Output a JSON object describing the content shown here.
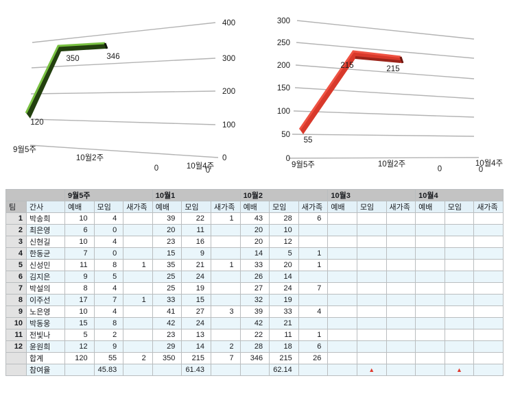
{
  "chart_data": [
    {
      "type": "line",
      "style": "3d-perspective",
      "title": "",
      "xlabel": "",
      "ylabel": "",
      "series_name": "예배",
      "series_color": "#6dbf3e",
      "categories": [
        "9월5주",
        "10월1",
        "10월2",
        "10월3",
        "10월4"
      ],
      "x_tick_labels": [
        "9월5주",
        "10월2주",
        "10월4주"
      ],
      "values": [
        120,
        350,
        346,
        0,
        0
      ],
      "yticks": [
        0,
        100,
        200,
        300,
        400
      ],
      "ylim": [
        0,
        400
      ],
      "grid": true,
      "legend_position": "none",
      "y_axis_side": "right"
    },
    {
      "type": "line",
      "style": "3d-perspective",
      "title": "",
      "xlabel": "",
      "ylabel": "",
      "series_name": "모임",
      "series_color": "#dd3b2d",
      "categories": [
        "9월5주",
        "10월1",
        "10월2",
        "10월3",
        "10월4"
      ],
      "x_tick_labels": [
        "9월5주",
        "10월2주",
        "10월4주"
      ],
      "values": [
        55,
        215,
        215,
        0,
        0
      ],
      "yticks": [
        0,
        50,
        100,
        150,
        200,
        250,
        300
      ],
      "ylim": [
        0,
        300
      ],
      "grid": true,
      "legend_position": "none",
      "y_axis_side": "left"
    }
  ],
  "table": {
    "group_headers": [
      "",
      "9월5주",
      "10월1",
      "10월2",
      "10월3",
      "10월4"
    ],
    "col_headers": [
      "팀",
      "간사",
      "예배",
      "모임",
      "새가족",
      "예배",
      "모임",
      "새가족",
      "예배",
      "모임",
      "새가족",
      "예배",
      "모임",
      "새가족",
      "예배",
      "모임",
      "새가족"
    ],
    "rows": [
      {
        "num": "1",
        "name": "박송희",
        "values": [
          "10",
          "4",
          "",
          "39",
          "22",
          "1",
          "43",
          "28",
          "6",
          "",
          "",
          "",
          "",
          "",
          ""
        ]
      },
      {
        "num": "2",
        "name": "최은영",
        "values": [
          "6",
          "0",
          "",
          "20",
          "11",
          "",
          "20",
          "10",
          "",
          "",
          "",
          "",
          "",
          "",
          ""
        ]
      },
      {
        "num": "3",
        "name": "신현길",
        "values": [
          "10",
          "4",
          "",
          "23",
          "16",
          "",
          "20",
          "12",
          "",
          "",
          "",
          "",
          "",
          "",
          ""
        ]
      },
      {
        "num": "4",
        "name": "한동균",
        "values": [
          "7",
          "0",
          "",
          "15",
          "9",
          "",
          "14",
          "5",
          "1",
          "",
          "",
          "",
          "",
          "",
          ""
        ]
      },
      {
        "num": "5",
        "name": "신성민",
        "values": [
          "11",
          "8",
          "1",
          "35",
          "21",
          "1",
          "33",
          "20",
          "1",
          "",
          "",
          "",
          "",
          "",
          ""
        ]
      },
      {
        "num": "6",
        "name": "김지은",
        "values": [
          "9",
          "5",
          "",
          "25",
          "24",
          "",
          "26",
          "14",
          "",
          "",
          "",
          "",
          "",
          "",
          ""
        ]
      },
      {
        "num": "7",
        "name": "박설의",
        "values": [
          "8",
          "4",
          "",
          "25",
          "19",
          "",
          "27",
          "24",
          "7",
          "",
          "",
          "",
          "",
          "",
          ""
        ]
      },
      {
        "num": "8",
        "name": "이주선",
        "values": [
          "17",
          "7",
          "1",
          "33",
          "15",
          "",
          "32",
          "19",
          "",
          "",
          "",
          "",
          "",
          "",
          ""
        ]
      },
      {
        "num": "9",
        "name": "노은영",
        "values": [
          "10",
          "4",
          "",
          "41",
          "27",
          "3",
          "39",
          "33",
          "4",
          "",
          "",
          "",
          "",
          "",
          ""
        ]
      },
      {
        "num": "10",
        "name": "박동웅",
        "values": [
          "15",
          "8",
          "",
          "42",
          "24",
          "",
          "42",
          "21",
          "",
          "",
          "",
          "",
          "",
          "",
          ""
        ]
      },
      {
        "num": "11",
        "name": "전빛나",
        "values": [
          "5",
          "2",
          "",
          "23",
          "13",
          "",
          "22",
          "11",
          "1",
          "",
          "",
          "",
          "",
          "",
          ""
        ]
      },
      {
        "num": "12",
        "name": "윤원희",
        "values": [
          "12",
          "9",
          "",
          "29",
          "14",
          "2",
          "28",
          "18",
          "6",
          "",
          "",
          "",
          "",
          "",
          ""
        ]
      }
    ],
    "total_row": {
      "num": "",
      "name": "합계",
      "values": [
        "120",
        "55",
        "2",
        "350",
        "215",
        "7",
        "346",
        "215",
        "26",
        "",
        "",
        "",
        "",
        "",
        ""
      ]
    },
    "rate_row": {
      "num": "",
      "name": "참여율",
      "values": [
        "",
        "45.83",
        "",
        "",
        "61.43",
        "",
        "",
        "62.14",
        "",
        "",
        "▲",
        "",
        "",
        "▲",
        ""
      ]
    },
    "triangle_color": "#e0392e"
  }
}
